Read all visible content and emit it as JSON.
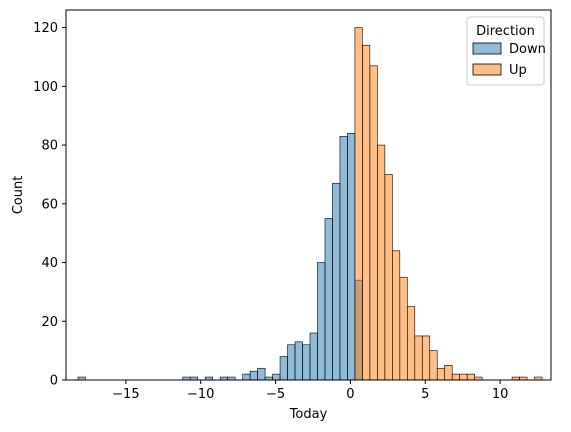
{
  "chart_data": {
    "type": "bar",
    "subtype": "histogram",
    "xlabel": "Today",
    "ylabel": "Count",
    "xlim": [
      -19,
      13.4
    ],
    "ylim": [
      0,
      126
    ],
    "xticks": [
      -15,
      -10,
      -5,
      0,
      5,
      10
    ],
    "yticks": [
      0,
      20,
      40,
      60,
      80,
      100,
      120
    ],
    "bin_width": 0.5,
    "grid": false,
    "legend": {
      "title": "Direction",
      "placement": "top-right"
    },
    "series": [
      {
        "name": "Down",
        "color": "#1f77b4",
        "bins": [
          [
            -18.2,
            1
          ],
          [
            -11.2,
            1
          ],
          [
            -10.7,
            1
          ],
          [
            -9.7,
            1
          ],
          [
            -8.7,
            1
          ],
          [
            -8.2,
            1
          ],
          [
            -7.2,
            2
          ],
          [
            -6.7,
            3
          ],
          [
            -6.2,
            4
          ],
          [
            -5.7,
            1
          ],
          [
            -5.2,
            2
          ],
          [
            -4.7,
            8
          ],
          [
            -4.2,
            12
          ],
          [
            -3.7,
            13
          ],
          [
            -3.2,
            12
          ],
          [
            -2.7,
            16
          ],
          [
            -2.2,
            40
          ],
          [
            -1.7,
            55
          ],
          [
            -1.2,
            67
          ],
          [
            -0.7,
            83
          ],
          [
            -0.2,
            84
          ],
          [
            0.3,
            34
          ]
        ]
      },
      {
        "name": "Up",
        "color": "#ff7f0e",
        "bins": [
          [
            0.3,
            120
          ],
          [
            0.8,
            114
          ],
          [
            1.3,
            107
          ],
          [
            1.8,
            80
          ],
          [
            2.3,
            70
          ],
          [
            2.8,
            44
          ],
          [
            3.3,
            35
          ],
          [
            3.8,
            25
          ],
          [
            4.3,
            15
          ],
          [
            4.8,
            15
          ],
          [
            5.3,
            10
          ],
          [
            5.8,
            4
          ],
          [
            6.3,
            5
          ],
          [
            6.8,
            2
          ],
          [
            7.3,
            2
          ],
          [
            7.8,
            2
          ],
          [
            8.3,
            1
          ],
          [
            10.8,
            1
          ],
          [
            11.3,
            1
          ],
          [
            12.3,
            1
          ]
        ]
      }
    ]
  }
}
